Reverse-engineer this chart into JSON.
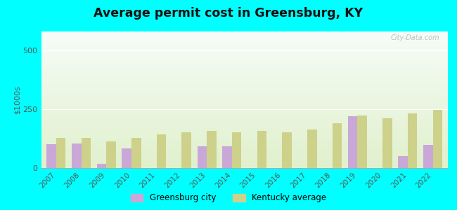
{
  "years": [
    2007,
    2008,
    2009,
    2010,
    2011,
    2012,
    2013,
    2014,
    2015,
    2016,
    2017,
    2018,
    2019,
    2020,
    2021,
    2022
  ],
  "city_values": [
    100,
    105,
    18,
    82,
    null,
    null,
    93,
    92,
    null,
    null,
    null,
    null,
    220,
    null,
    52,
    98
  ],
  "state_values": [
    128,
    128,
    112,
    128,
    143,
    152,
    158,
    152,
    157,
    152,
    163,
    190,
    222,
    212,
    232,
    248
  ],
  "city_color": "#c9a8d8",
  "state_color": "#cdd18a",
  "title": "Average permit cost in Greensburg, KY",
  "ylabel": "$1000s",
  "ylim": [
    0,
    580
  ],
  "yticks": [
    0,
    250,
    500
  ],
  "bg_outer": "#00ffff",
  "city_label": "Greensburg city",
  "state_label": "Kentucky average",
  "bar_width": 0.38
}
